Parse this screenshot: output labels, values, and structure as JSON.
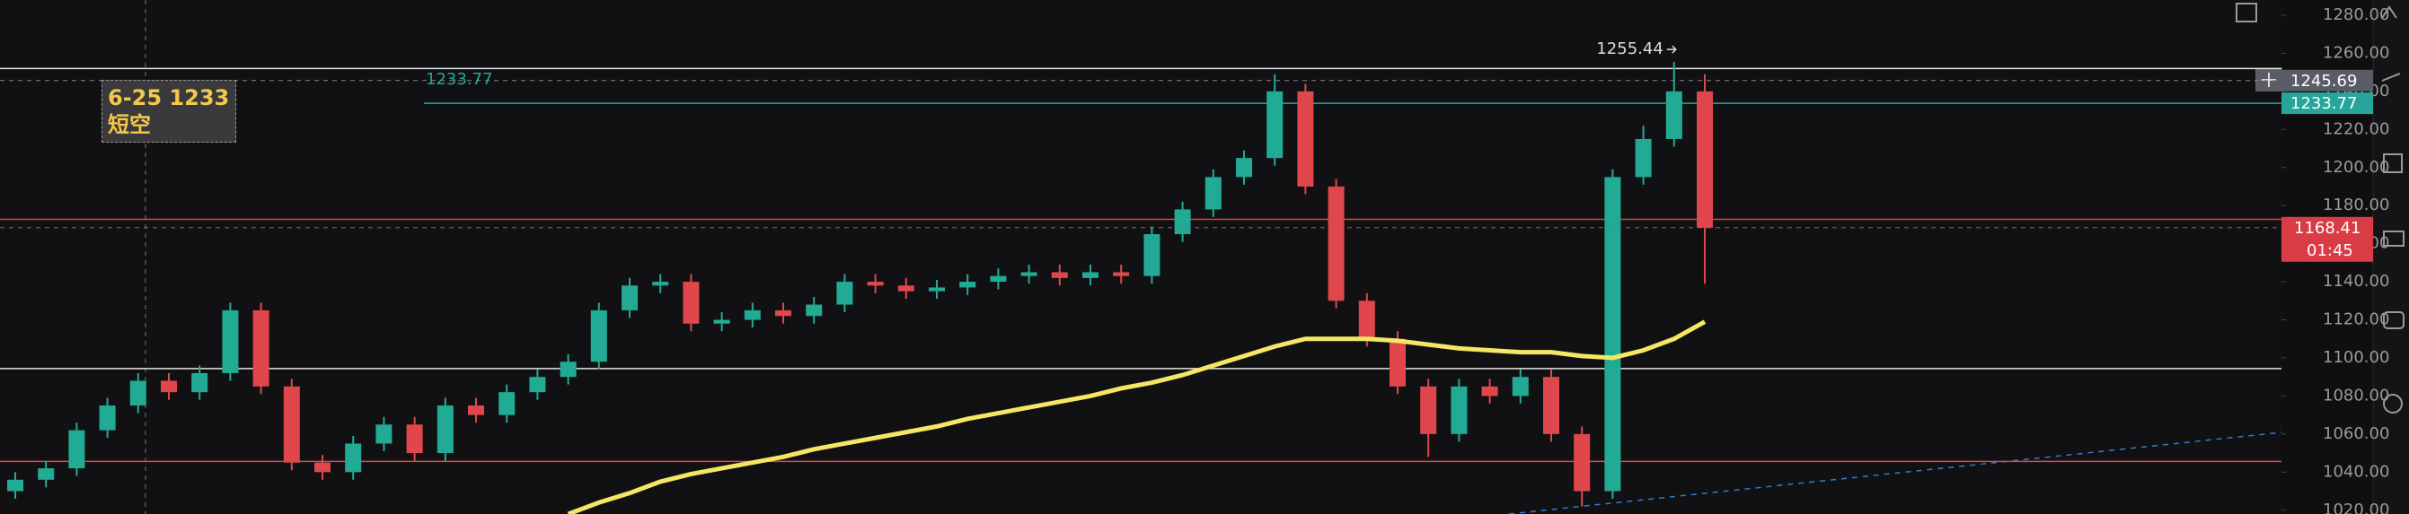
{
  "chart_data": {
    "type": "candlestick",
    "categories": [
      null,
      null,
      null,
      null,
      null,
      null,
      null,
      null,
      null,
      null,
      null,
      null,
      null,
      null,
      null,
      null,
      null,
      null,
      null,
      null,
      null,
      null,
      null,
      null,
      null,
      null,
      null,
      null,
      null,
      null,
      null,
      null,
      null,
      null,
      null,
      null,
      null,
      null,
      null,
      null,
      null,
      null,
      null,
      null,
      null,
      null,
      null,
      null,
      null,
      null,
      null,
      null,
      null,
      null,
      null,
      null
    ],
    "open": [
      1030,
      1036,
      1042,
      1062,
      1075,
      1088,
      1082,
      1092,
      1125,
      1085,
      1045,
      1040,
      1055,
      1065,
      1050,
      1075,
      1070,
      1082,
      1090,
      1098,
      1125,
      1138,
      1140,
      1118,
      1120,
      1125,
      1122,
      1128,
      1140,
      1138,
      1135,
      1137,
      1140,
      1143,
      1145,
      1142,
      1145,
      1143,
      1165,
      1178,
      1195,
      1205,
      1240,
      1190,
      1130,
      1110,
      1085,
      1060,
      1085,
      1080,
      1090,
      1060,
      1030,
      1195,
      1215,
      1240
    ],
    "high": [
      1040,
      1046,
      1066,
      1079,
      1092,
      1092,
      1096,
      1129,
      1129,
      1089,
      1049,
      1059,
      1069,
      1069,
      1079,
      1079,
      1086,
      1094,
      1102,
      1129,
      1142,
      1144,
      1144,
      1124,
      1129,
      1129,
      1132,
      1144,
      1144,
      1142,
      1141,
      1144,
      1147,
      1149,
      1149,
      1149,
      1149,
      1169,
      1182,
      1199,
      1209,
      1249,
      1244,
      1194,
      1134,
      1114,
      1089,
      1089,
      1089,
      1094,
      1094,
      1064,
      1199,
      1222,
      1255.44,
      1249
    ],
    "low": [
      1026,
      1032,
      1038,
      1058,
      1071,
      1078,
      1078,
      1088,
      1081,
      1041,
      1036,
      1036,
      1051,
      1046,
      1046,
      1066,
      1066,
      1078,
      1086,
      1094,
      1121,
      1134,
      1114,
      1114,
      1116,
      1118,
      1118,
      1124,
      1134,
      1131,
      1131,
      1133,
      1136,
      1139,
      1138,
      1138,
      1139,
      1139,
      1161,
      1174,
      1191,
      1201,
      1186,
      1126,
      1106,
      1081,
      1048,
      1056,
      1076,
      1076,
      1056,
      1022,
      1026,
      1191,
      1211,
      1139
    ],
    "close": [
      1036,
      1042,
      1062,
      1075,
      1088,
      1082,
      1092,
      1125,
      1085,
      1045,
      1040,
      1055,
      1065,
      1050,
      1075,
      1070,
      1082,
      1090,
      1098,
      1125,
      1138,
      1140,
      1118,
      1120,
      1125,
      1122,
      1128,
      1140,
      1138,
      1135,
      1137,
      1140,
      1143,
      1145,
      1142,
      1145,
      1143,
      1165,
      1178,
      1195,
      1205,
      1240,
      1190,
      1130,
      1110,
      1085,
      1060,
      1085,
      1080,
      1090,
      1060,
      1030,
      1195,
      1215,
      1240,
      1168.41
    ],
    "up_color": "#22ab94",
    "down_color": "#e0474c",
    "ma": {
      "color": "#f5e663",
      "values": [
        null,
        null,
        null,
        null,
        null,
        null,
        null,
        null,
        null,
        null,
        null,
        null,
        null,
        null,
        null,
        null,
        null,
        null,
        1018,
        1024,
        1029,
        1035,
        1039,
        1042,
        1045,
        1048,
        1052,
        1055,
        1058,
        1061,
        1064,
        1068,
        1071,
        1074,
        1077,
        1080,
        1084,
        1087,
        1091,
        1096,
        1101,
        1106,
        1110,
        1110,
        1110,
        1109,
        1107,
        1105,
        1104,
        1103,
        1103,
        1101,
        1100,
        1104,
        1110,
        1119
      ]
    },
    "levels": [
      {
        "value": 1252,
        "color": "#e6e6e6"
      },
      {
        "value": 1233.77,
        "color": "#26a69a"
      },
      {
        "value": 1172.8,
        "color": "#d64b4b"
      },
      {
        "value": 1094.4,
        "color": "#e6e6e6"
      },
      {
        "value": 1045.6,
        "color": "#d64b4b"
      }
    ],
    "crosshair_price": 1245.69,
    "countdown": "01:45",
    "note": "6-25 1233短空",
    "ylim": [
      1018,
      1288
    ],
    "yticks": [
      {
        "value": 1280,
        "label": "1280.00"
      },
      {
        "value": 1260,
        "label": "1260.00"
      },
      {
        "value": 1240,
        "label": "1240.00"
      },
      {
        "value": 1220,
        "label": "1220.00"
      },
      {
        "value": 1200,
        "label": "1200.00"
      },
      {
        "value": 1180,
        "label": "1180.00"
      },
      {
        "value": 1160,
        "label": "1160.00"
      },
      {
        "value": 1140,
        "label": "1140.00"
      },
      {
        "value": 1120,
        "label": "1120.00"
      },
      {
        "value": 1100,
        "label": "1100.00"
      },
      {
        "value": 1080,
        "label": "1080.00"
      },
      {
        "value": 1060,
        "label": "1060.00"
      },
      {
        "value": 1040,
        "label": "1040.00"
      },
      {
        "value": 1020,
        "label": "1020.00"
      }
    ]
  }
}
